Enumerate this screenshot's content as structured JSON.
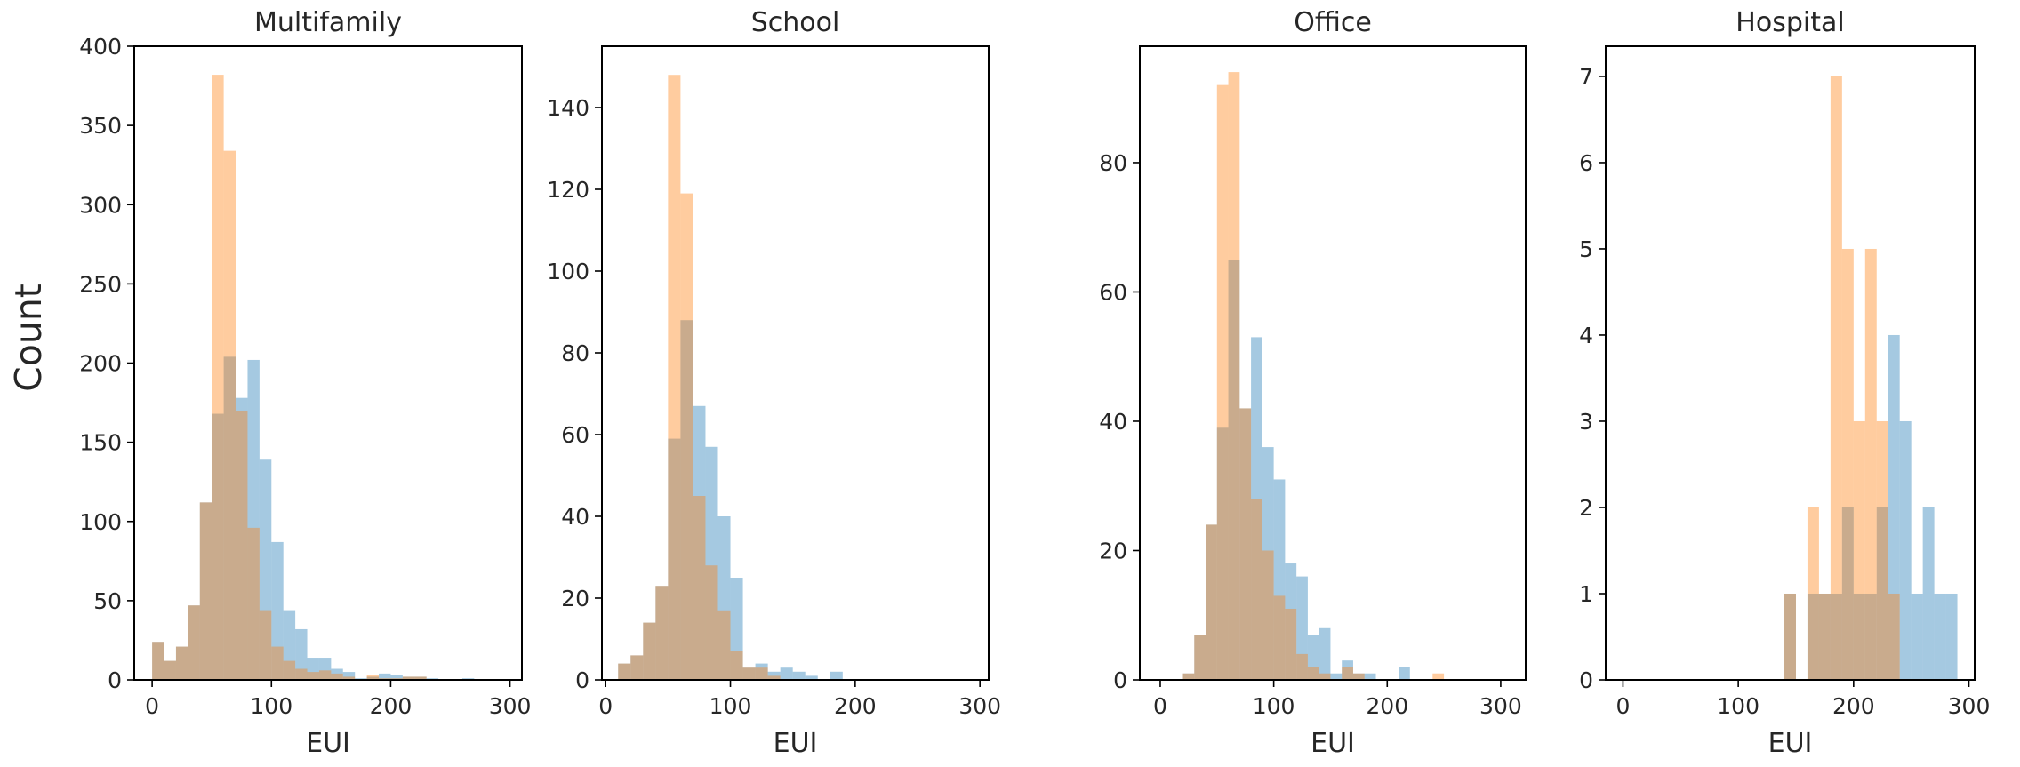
{
  "figure": {
    "ylabel": "Count"
  },
  "colors": {
    "blue": "#1f77b4",
    "orange": "#ff7f0e",
    "bar_alpha": 0.4
  },
  "chart_data": [
    {
      "type": "histogram",
      "title": "Multifamily",
      "xlabel": "EUI",
      "ylabel": "Count",
      "xlim": [
        -15,
        310
      ],
      "ylim": [
        0,
        400
      ],
      "xticks": [
        0,
        100,
        200,
        300
      ],
      "yticks": [
        0,
        50,
        100,
        150,
        200,
        250,
        300,
        350,
        400
      ],
      "bin_width": 10,
      "series": [
        {
          "color": "blue",
          "bins": [
            [
              0,
              24
            ],
            [
              10,
              12
            ],
            [
              20,
              21
            ],
            [
              30,
              47
            ],
            [
              40,
              112
            ],
            [
              50,
              168
            ],
            [
              60,
              204
            ],
            [
              70,
              178
            ],
            [
              80,
              202
            ],
            [
              90,
              139
            ],
            [
              100,
              87
            ],
            [
              110,
              44
            ],
            [
              120,
              32
            ],
            [
              130,
              14
            ],
            [
              140,
              14
            ],
            [
              150,
              7
            ],
            [
              160,
              5
            ],
            [
              170,
              1
            ],
            [
              180,
              2
            ],
            [
              190,
              4
            ],
            [
              200,
              3
            ],
            [
              210,
              2
            ],
            [
              220,
              2
            ],
            [
              230,
              1
            ],
            [
              260,
              1
            ]
          ]
        },
        {
          "color": "orange",
          "bins": [
            [
              0,
              24
            ],
            [
              10,
              12
            ],
            [
              20,
              21
            ],
            [
              30,
              47
            ],
            [
              40,
              112
            ],
            [
              50,
              382
            ],
            [
              60,
              334
            ],
            [
              70,
              170
            ],
            [
              80,
              96
            ],
            [
              90,
              44
            ],
            [
              100,
              21
            ],
            [
              110,
              12
            ],
            [
              120,
              7
            ],
            [
              130,
              5
            ],
            [
              140,
              6
            ],
            [
              150,
              4
            ],
            [
              160,
              2
            ],
            [
              180,
              3
            ],
            [
              190,
              1
            ],
            [
              200,
              1
            ],
            [
              210,
              2
            ],
            [
              220,
              2
            ]
          ]
        }
      ]
    },
    {
      "type": "histogram",
      "title": "School",
      "xlabel": "EUI",
      "ylabel": "Count",
      "xlim": [
        -3,
        307
      ],
      "ylim": [
        0,
        155
      ],
      "xticks": [
        0,
        100,
        200,
        300
      ],
      "yticks": [
        0,
        20,
        40,
        60,
        80,
        100,
        120,
        140
      ],
      "bin_width": 10,
      "series": [
        {
          "color": "blue",
          "bins": [
            [
              10,
              4
            ],
            [
              20,
              6
            ],
            [
              30,
              14
            ],
            [
              40,
              23
            ],
            [
              50,
              59
            ],
            [
              60,
              88
            ],
            [
              70,
              67
            ],
            [
              80,
              57
            ],
            [
              90,
              40
            ],
            [
              100,
              25
            ],
            [
              110,
              3
            ],
            [
              120,
              4
            ],
            [
              130,
              2
            ],
            [
              140,
              3
            ],
            [
              150,
              2
            ],
            [
              160,
              1
            ],
            [
              180,
              2
            ]
          ]
        },
        {
          "color": "orange",
          "bins": [
            [
              10,
              4
            ],
            [
              20,
              6
            ],
            [
              30,
              14
            ],
            [
              40,
              23
            ],
            [
              50,
              148
            ],
            [
              60,
              119
            ],
            [
              70,
              45
            ],
            [
              80,
              28
            ],
            [
              90,
              17
            ],
            [
              100,
              7
            ],
            [
              110,
              3
            ],
            [
              120,
              3
            ],
            [
              130,
              1
            ]
          ]
        }
      ]
    },
    {
      "type": "histogram",
      "title": "Office",
      "xlabel": "EUI",
      "ylabel": "Count",
      "xlim": [
        -18,
        322
      ],
      "ylim": [
        0,
        98
      ],
      "xticks": [
        0,
        100,
        200,
        300
      ],
      "yticks": [
        0,
        20,
        40,
        60,
        80
      ],
      "bin_width": 10,
      "series": [
        {
          "color": "blue",
          "bins": [
            [
              20,
              1
            ],
            [
              30,
              7
            ],
            [
              40,
              24
            ],
            [
              50,
              39
            ],
            [
              60,
              65
            ],
            [
              70,
              42
            ],
            [
              80,
              53
            ],
            [
              90,
              36
            ],
            [
              100,
              31
            ],
            [
              110,
              18
            ],
            [
              120,
              16
            ],
            [
              130,
              7
            ],
            [
              140,
              8
            ],
            [
              150,
              1
            ],
            [
              160,
              3
            ],
            [
              170,
              1
            ],
            [
              180,
              1
            ],
            [
              210,
              2
            ]
          ]
        },
        {
          "color": "orange",
          "bins": [
            [
              20,
              1
            ],
            [
              30,
              7
            ],
            [
              40,
              24
            ],
            [
              50,
              92
            ],
            [
              60,
              94
            ],
            [
              70,
              42
            ],
            [
              80,
              28
            ],
            [
              90,
              20
            ],
            [
              100,
              13
            ],
            [
              110,
              11
            ],
            [
              120,
              4
            ],
            [
              130,
              2
            ],
            [
              140,
              1
            ],
            [
              160,
              2
            ],
            [
              170,
              1
            ],
            [
              240,
              1
            ]
          ]
        }
      ]
    },
    {
      "type": "histogram",
      "title": "Hospital",
      "xlabel": "EUI",
      "ylabel": "Count",
      "xlim": [
        -15,
        305
      ],
      "ylim": [
        0,
        7.35
      ],
      "xticks": [
        0,
        100,
        200,
        300
      ],
      "yticks": [
        0,
        1,
        2,
        3,
        4,
        5,
        6,
        7
      ],
      "bin_width": 10,
      "series": [
        {
          "color": "blue",
          "bins": [
            [
              140,
              1
            ],
            [
              160,
              1
            ],
            [
              170,
              1
            ],
            [
              180,
              1
            ],
            [
              190,
              2
            ],
            [
              200,
              1
            ],
            [
              210,
              1
            ],
            [
              220,
              2
            ],
            [
              230,
              4
            ],
            [
              240,
              3
            ],
            [
              250,
              1
            ],
            [
              260,
              2
            ],
            [
              270,
              1
            ],
            [
              280,
              1
            ]
          ]
        },
        {
          "color": "orange",
          "bins": [
            [
              140,
              1
            ],
            [
              160,
              2
            ],
            [
              170,
              1
            ],
            [
              180,
              7
            ],
            [
              190,
              5
            ],
            [
              200,
              3
            ],
            [
              210,
              5
            ],
            [
              220,
              3
            ],
            [
              230,
              1
            ]
          ]
        }
      ]
    }
  ]
}
